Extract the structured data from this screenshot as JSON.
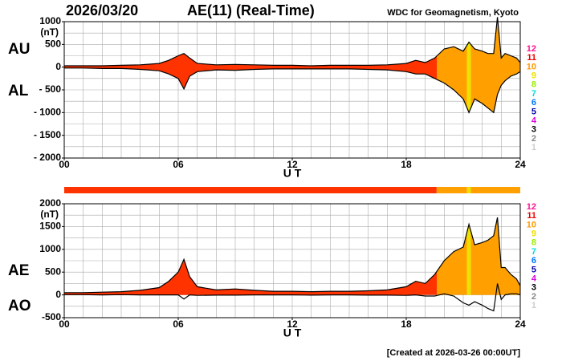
{
  "date": "2026/03/20",
  "title": "AE(11) (Real-Time)",
  "source": "WDC for Geomagnetism, Kyoto",
  "created": "[Created at 2026-03-26 00:00UT]",
  "station_legend": [
    {
      "label": "12",
      "color": "#ff1493"
    },
    {
      "label": "11",
      "color": "#ee0000"
    },
    {
      "label": "10",
      "color": "#ff9900"
    },
    {
      "label": "9",
      "color": "#f0e000"
    },
    {
      "label": "8",
      "color": "#99ee00"
    },
    {
      "label": "7",
      "color": "#00dddd"
    },
    {
      "label": "6",
      "color": "#0077ff"
    },
    {
      "label": "5",
      "color": "#0000aa"
    },
    {
      "label": "4",
      "color": "#dd00dd"
    },
    {
      "label": "3",
      "color": "#000000"
    },
    {
      "label": "2",
      "color": "#888888"
    },
    {
      "label": "1",
      "color": "#cccccc"
    }
  ],
  "station_bands": [
    {
      "x": [
        0,
        19.6
      ],
      "color": "#ff3300"
    },
    {
      "x": [
        19.6,
        21.2
      ],
      "color": "#ffa000"
    },
    {
      "x": [
        21.2,
        21.4
      ],
      "color": "#f0e000"
    },
    {
      "x": [
        21.4,
        24
      ],
      "color": "#ffa000"
    }
  ],
  "chart_data": [
    {
      "type": "band",
      "ylabel": "(nT)",
      "xlabel": "U T",
      "xlim": [
        0,
        24
      ],
      "ylim": [
        -2000,
        1000
      ],
      "xticks": [
        {
          "value": 0,
          "label": "00"
        },
        {
          "value": 6,
          "label": "06"
        },
        12,
        18,
        24
      ],
      "yticks": [
        {
          "value": -2000,
          "label": "- 2000"
        },
        {
          "value": -1500,
          "label": "- 1500"
        },
        {
          "value": -1000,
          "label": "- 1000"
        },
        {
          "value": -500,
          "label": "- 500"
        },
        0,
        500,
        1000
      ],
      "xgrid": [
        1,
        2,
        3,
        4,
        5,
        6,
        7,
        8,
        9,
        10,
        11,
        12,
        13,
        14,
        15,
        16,
        17,
        18,
        19,
        20,
        21,
        22,
        23
      ],
      "ygrid": [
        -1750,
        -1500,
        -1250,
        -1000,
        -750,
        -500,
        -250,
        0,
        250,
        500,
        750
      ],
      "x": [
        0,
        1,
        2,
        3,
        4,
        5,
        5.5,
        6,
        6.3,
        6.6,
        7,
        8,
        9,
        10,
        11,
        12,
        13,
        14,
        15,
        16,
        17,
        18,
        18.5,
        19,
        19.5,
        20,
        20.5,
        21,
        21.3,
        21.6,
        22,
        22.3,
        22.6,
        22.8,
        23,
        23.2,
        23.5,
        23.8,
        24
      ],
      "series": [
        {
          "name": "AU",
          "color": "#000000",
          "values": [
            30,
            30,
            30,
            40,
            50,
            80,
            150,
            250,
            300,
            200,
            80,
            50,
            60,
            50,
            40,
            40,
            30,
            40,
            40,
            40,
            50,
            80,
            150,
            100,
            200,
            400,
            450,
            350,
            550,
            400,
            350,
            300,
            300,
            1100,
            200,
            300,
            250,
            200,
            100
          ]
        },
        {
          "name": "AL",
          "color": "#000000",
          "values": [
            -20,
            -20,
            -30,
            -30,
            -50,
            -80,
            -150,
            -250,
            -480,
            -200,
            -100,
            -60,
            -70,
            -50,
            -40,
            -40,
            -40,
            -40,
            -40,
            -50,
            -60,
            -100,
            -150,
            -150,
            -250,
            -350,
            -500,
            -700,
            -1000,
            -700,
            -800,
            -900,
            -1000,
            -600,
            -400,
            -300,
            -200,
            -150,
            -100
          ]
        }
      ]
    },
    {
      "type": "area",
      "ylabel": "(nT)",
      "xlabel": "U T",
      "xlim": [
        0,
        24
      ],
      "ylim": [
        -500,
        2000
      ],
      "xticks": [
        {
          "value": 0,
          "label": "00"
        },
        {
          "value": 6,
          "label": "06"
        },
        12,
        18,
        24
      ],
      "yticks": [
        -500,
        0,
        500,
        1000,
        1500,
        2000
      ],
      "xgrid": [
        1,
        2,
        3,
        4,
        5,
        6,
        7,
        8,
        9,
        10,
        11,
        12,
        13,
        14,
        15,
        16,
        17,
        18,
        19,
        20,
        21,
        22,
        23
      ],
      "ygrid": [
        -250,
        0,
        250,
        500,
        750,
        1000,
        1250,
        1500,
        1750
      ],
      "x": [
        0,
        1,
        2,
        3,
        4,
        5,
        5.5,
        6,
        6.3,
        6.6,
        7,
        8,
        9,
        10,
        11,
        12,
        13,
        14,
        15,
        16,
        17,
        18,
        18.5,
        19,
        19.5,
        20,
        20.5,
        21,
        21.3,
        21.6,
        22,
        22.3,
        22.6,
        22.8,
        23,
        23.2,
        23.5,
        23.8,
        24
      ],
      "series": [
        {
          "name": "AE",
          "color": "#000000",
          "values": [
            50,
            50,
            60,
            70,
            100,
            160,
            300,
            500,
            780,
            400,
            180,
            110,
            130,
            100,
            80,
            80,
            70,
            80,
            80,
            90,
            110,
            180,
            300,
            250,
            450,
            750,
            950,
            1050,
            1550,
            1100,
            1150,
            1200,
            1300,
            1700,
            600,
            600,
            450,
            350,
            200
          ]
        },
        {
          "name": "AO",
          "color": "#000000",
          "values": [
            5,
            5,
            0,
            5,
            0,
            0,
            0,
            0,
            -90,
            0,
            -10,
            -5,
            -5,
            0,
            0,
            0,
            -5,
            0,
            0,
            -5,
            -5,
            -10,
            0,
            -25,
            -25,
            25,
            -25,
            -175,
            -225,
            -150,
            -225,
            -300,
            -350,
            250,
            -100,
            0,
            25,
            25,
            0
          ]
        }
      ]
    }
  ]
}
